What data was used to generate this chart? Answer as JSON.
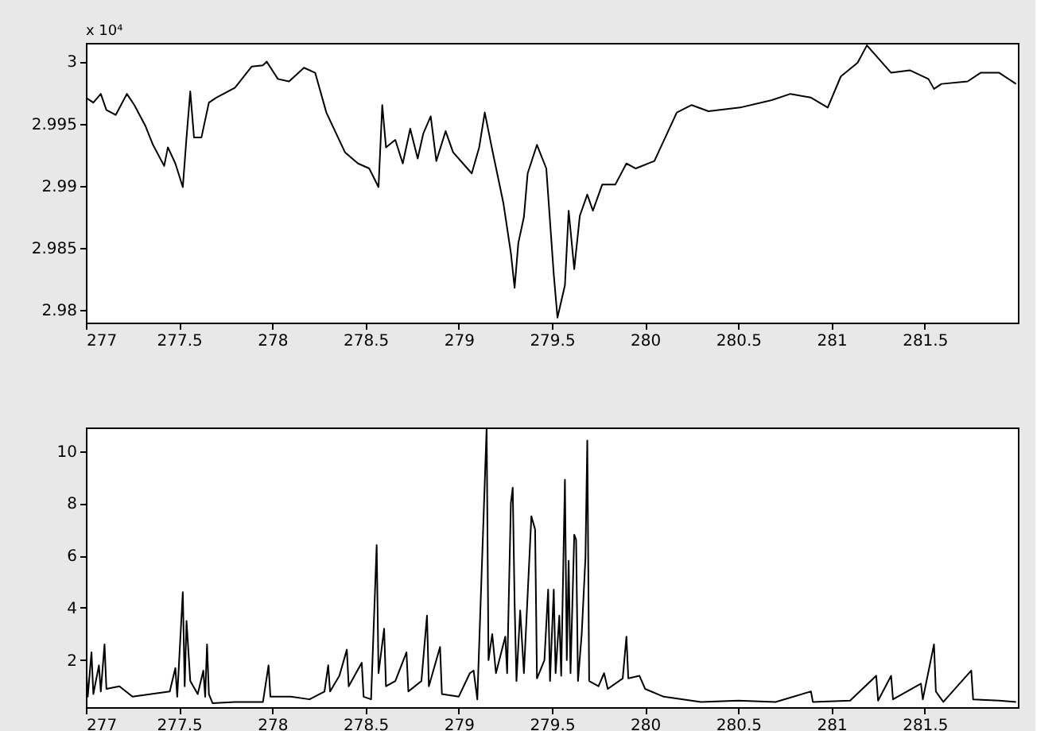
{
  "chart_data": [
    {
      "type": "line",
      "annotations": [
        "x 10⁴"
      ],
      "xlim": [
        277,
        282
      ],
      "xticks": [
        277,
        277.5,
        278,
        278.5,
        279,
        279.5,
        280,
        280.5,
        281,
        281.5
      ],
      "ylim": [
        2.979,
        3.0015
      ],
      "yticks": [
        2.98,
        2.985,
        2.99,
        2.995,
        3
      ],
      "grid": false,
      "marker": "none",
      "line_style": "solid",
      "series": [
        {
          "color": "#000000",
          "x": [
            277,
            277.04,
            277.08,
            277.11,
            277.16,
            277.22,
            277.26,
            277.32,
            277.36,
            277.42,
            277.44,
            277.48,
            277.52,
            277.54,
            277.56,
            277.58,
            277.62,
            277.66,
            277.7,
            277.8,
            277.89,
            277.95,
            277.97,
            278.03,
            278.09,
            278.17,
            278.23,
            278.29,
            278.39,
            278.46,
            278.52,
            278.57,
            278.59,
            278.61,
            278.66,
            278.7,
            278.74,
            278.78,
            278.81,
            278.85,
            278.88,
            278.93,
            278.97,
            279.07,
            279.11,
            279.14,
            279.18,
            279.24,
            279.28,
            279.3,
            279.32,
            279.35,
            279.37,
            279.42,
            279.47,
            279.51,
            279.53,
            279.57,
            279.59,
            279.62,
            279.65,
            279.69,
            279.72,
            279.77,
            279.84,
            279.9,
            279.95,
            280.05,
            280.17,
            280.25,
            280.34,
            280.51,
            280.68,
            280.78,
            280.89,
            280.98,
            281.05,
            281.14,
            281.19,
            281.32,
            281.42,
            281.52,
            281.55,
            281.59,
            281.73,
            281.8,
            281.9,
            281.99
          ],
          "values": [
            2.9971,
            2.9967,
            2.9974,
            2.9961,
            2.9957,
            2.9974,
            2.9965,
            2.9948,
            2.9933,
            2.9916,
            2.9931,
            2.9918,
            2.9899,
            2.9939,
            2.9976,
            2.9939,
            2.9939,
            2.9967,
            2.9971,
            2.9979,
            2.9996,
            2.9997,
            3.0,
            2.9986,
            2.9984,
            2.9995,
            2.9991,
            2.9959,
            2.9927,
            2.9918,
            2.9914,
            2.9899,
            2.9965,
            2.9931,
            2.9937,
            2.9918,
            2.9946,
            2.9922,
            2.9942,
            2.9956,
            2.992,
            2.9944,
            2.9927,
            2.991,
            2.9931,
            2.9959,
            2.9929,
            2.9886,
            2.9846,
            2.9818,
            2.9854,
            2.9875,
            2.991,
            2.9933,
            2.9914,
            2.9829,
            2.9794,
            2.982,
            2.988,
            2.9833,
            2.9876,
            2.9893,
            2.988,
            2.9901,
            2.9901,
            2.9918,
            2.9914,
            2.992,
            2.9959,
            2.9965,
            2.996,
            2.9963,
            2.9969,
            2.9974,
            2.9971,
            2.9963,
            2.9988,
            2.9999,
            3.0013,
            2.9991,
            2.9993,
            2.9986,
            2.9978,
            2.9982,
            2.9984,
            2.9991,
            2.9991,
            2.9982
          ]
        }
      ]
    },
    {
      "type": "line",
      "xlim": [
        277,
        282
      ],
      "xticks": [
        277,
        277.5,
        278,
        278.5,
        279,
        279.5,
        280,
        280.5,
        281,
        281.5
      ],
      "ylim": [
        0.2,
        10.9
      ],
      "yticks": [
        2,
        4,
        6,
        8,
        10
      ],
      "grid": false,
      "marker": "none",
      "line_style": "solid",
      "series": [
        {
          "color": "#000000",
          "x": [
            277,
            277.01,
            277.03,
            277.04,
            277.07,
            277.08,
            277.1,
            277.11,
            277.18,
            277.25,
            277.35,
            277.45,
            277.48,
            277.49,
            277.52,
            277.53,
            277.54,
            277.56,
            277.6,
            277.63,
            277.64,
            277.65,
            277.66,
            277.68,
            277.8,
            277.95,
            277.98,
            277.99,
            278.1,
            278.2,
            278.28,
            278.3,
            278.31,
            278.36,
            278.4,
            278.41,
            278.48,
            278.49,
            278.53,
            278.56,
            278.57,
            278.6,
            278.61,
            278.66,
            278.72,
            278.73,
            278.8,
            278.83,
            278.84,
            278.9,
            278.91,
            279,
            279.06,
            279.08,
            279.1,
            279.15,
            279.16,
            279.18,
            279.2,
            279.25,
            279.26,
            279.28,
            279.29,
            279.3,
            279.31,
            279.33,
            279.35,
            279.39,
            279.41,
            279.42,
            279.46,
            279.48,
            279.49,
            279.51,
            279.52,
            279.54,
            279.55,
            279.57,
            279.58,
            279.59,
            279.6,
            279.62,
            279.63,
            279.64,
            279.66,
            279.68,
            279.69,
            279.7,
            279.75,
            279.78,
            279.8,
            279.88,
            279.9,
            279.91,
            279.97,
            280,
            280.1,
            280.3,
            280.5,
            280.7,
            280.89,
            280.9,
            281.1,
            281.24,
            281.25,
            281.32,
            281.33,
            281.48,
            281.49,
            281.55,
            281.56,
            281.6,
            281.75,
            281.76,
            281.9,
            281.99
          ],
          "values": [
            2.0,
            0.6,
            2.3,
            0.7,
            1.8,
            0.8,
            2.6,
            0.9,
            1.0,
            0.6,
            0.7,
            0.8,
            1.7,
            0.6,
            4.6,
            1.0,
            3.5,
            1.2,
            0.7,
            1.6,
            0.6,
            2.6,
            0.7,
            0.35,
            0.4,
            0.4,
            1.8,
            0.6,
            0.6,
            0.5,
            0.8,
            1.8,
            0.8,
            1.4,
            2.4,
            1.0,
            1.9,
            0.6,
            0.5,
            6.4,
            1.5,
            3.2,
            1.0,
            1.2,
            2.3,
            0.8,
            1.2,
            3.7,
            1.0,
            2.5,
            0.7,
            0.6,
            1.5,
            1.6,
            0.5,
            10.9,
            2.0,
            3.0,
            1.5,
            2.9,
            1.5,
            8.0,
            8.6,
            4.2,
            1.2,
            3.9,
            1.5,
            7.5,
            7.0,
            1.3,
            2.0,
            4.7,
            1.2,
            4.7,
            1.5,
            3.7,
            1.4,
            8.9,
            2.0,
            5.8,
            1.5,
            6.8,
            6.6,
            1.2,
            3.0,
            5.9,
            10.4,
            1.2,
            1.0,
            1.5,
            0.9,
            1.3,
            2.9,
            1.3,
            1.4,
            0.9,
            0.6,
            0.4,
            0.45,
            0.4,
            0.8,
            0.4,
            0.45,
            1.4,
            0.45,
            1.4,
            0.5,
            1.1,
            0.5,
            2.6,
            0.8,
            0.4,
            1.6,
            0.5,
            0.45,
            0.4
          ]
        }
      ]
    }
  ]
}
